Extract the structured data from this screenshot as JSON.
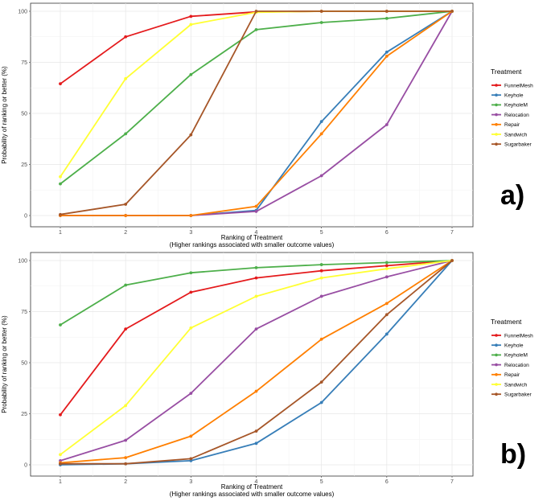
{
  "chart_data": [
    {
      "type": "line",
      "panel_label": "a)",
      "xlabel": "Ranking of Treatment",
      "xlabel_sub": "(Higher rankings associated with smaller outcome values)",
      "ylabel": "Probability of ranking or better (%)",
      "x": [
        1,
        2,
        3,
        4,
        5,
        6,
        7
      ],
      "ylim": [
        0,
        100
      ],
      "yticks": [
        0,
        25,
        50,
        75,
        100
      ],
      "grid": true,
      "legend_title": "Treatment",
      "legend_position": "right",
      "series": [
        {
          "name": "FunnelMesh",
          "color": "#e41a1c",
          "values": [
            64.5,
            87.5,
            97.5,
            99.7,
            100,
            100,
            100
          ]
        },
        {
          "name": "Keyhole",
          "color": "#377eb8",
          "values": [
            0,
            0,
            0,
            2.5,
            46,
            80,
            100
          ]
        },
        {
          "name": "KeyholeM",
          "color": "#4daf4a",
          "values": [
            15.5,
            40,
            69,
            91,
            94.5,
            96.5,
            100
          ]
        },
        {
          "name": "Relocation",
          "color": "#984ea3",
          "values": [
            0,
            0,
            0,
            2,
            19.5,
            44.5,
            100
          ]
        },
        {
          "name": "Repair",
          "color": "#ff7f00",
          "values": [
            0,
            0,
            0,
            4.5,
            40,
            78,
            100
          ]
        },
        {
          "name": "Sandwich",
          "color": "#ffff33",
          "values": [
            19,
            67,
            93.5,
            99.5,
            100,
            100,
            100
          ]
        },
        {
          "name": "Sugarbaker",
          "color": "#a65628",
          "values": [
            0.5,
            5.5,
            39.5,
            100,
            100,
            100,
            100
          ]
        }
      ]
    },
    {
      "type": "line",
      "panel_label": "b)",
      "xlabel": "Ranking of Treatment",
      "xlabel_sub": "(Higher rankings associated with smaller outcome values)",
      "ylabel": "Probability of ranking or better (%)",
      "x": [
        1,
        2,
        3,
        4,
        5,
        6,
        7
      ],
      "ylim": [
        0,
        100
      ],
      "yticks": [
        0,
        25,
        50,
        75,
        100
      ],
      "grid": true,
      "legend_title": "Treatment",
      "legend_position": "right",
      "series": [
        {
          "name": "FunnelMesh",
          "color": "#e41a1c",
          "values": [
            24.5,
            66.5,
            84.5,
            91.5,
            95,
            97.5,
            100
          ]
        },
        {
          "name": "Keyhole",
          "color": "#377eb8",
          "values": [
            0,
            0.5,
            2,
            10.5,
            30.5,
            64,
            100
          ]
        },
        {
          "name": "KeyholeM",
          "color": "#4daf4a",
          "values": [
            68.5,
            88,
            94,
            96.5,
            98,
            99,
            100
          ]
        },
        {
          "name": "Relocation",
          "color": "#984ea3",
          "values": [
            2,
            12,
            35,
            66.5,
            82.5,
            92,
            100
          ]
        },
        {
          "name": "Repair",
          "color": "#ff7f00",
          "values": [
            1,
            3.5,
            14,
            36,
            61.5,
            79,
            100
          ]
        },
        {
          "name": "Sandwich",
          "color": "#ffff33",
          "values": [
            5,
            29,
            67,
            82.5,
            91.5,
            96,
            100
          ]
        },
        {
          "name": "Sugarbaker",
          "color": "#a65628",
          "values": [
            0.5,
            0.5,
            3,
            16.5,
            40.5,
            73.5,
            100
          ]
        }
      ]
    }
  ]
}
